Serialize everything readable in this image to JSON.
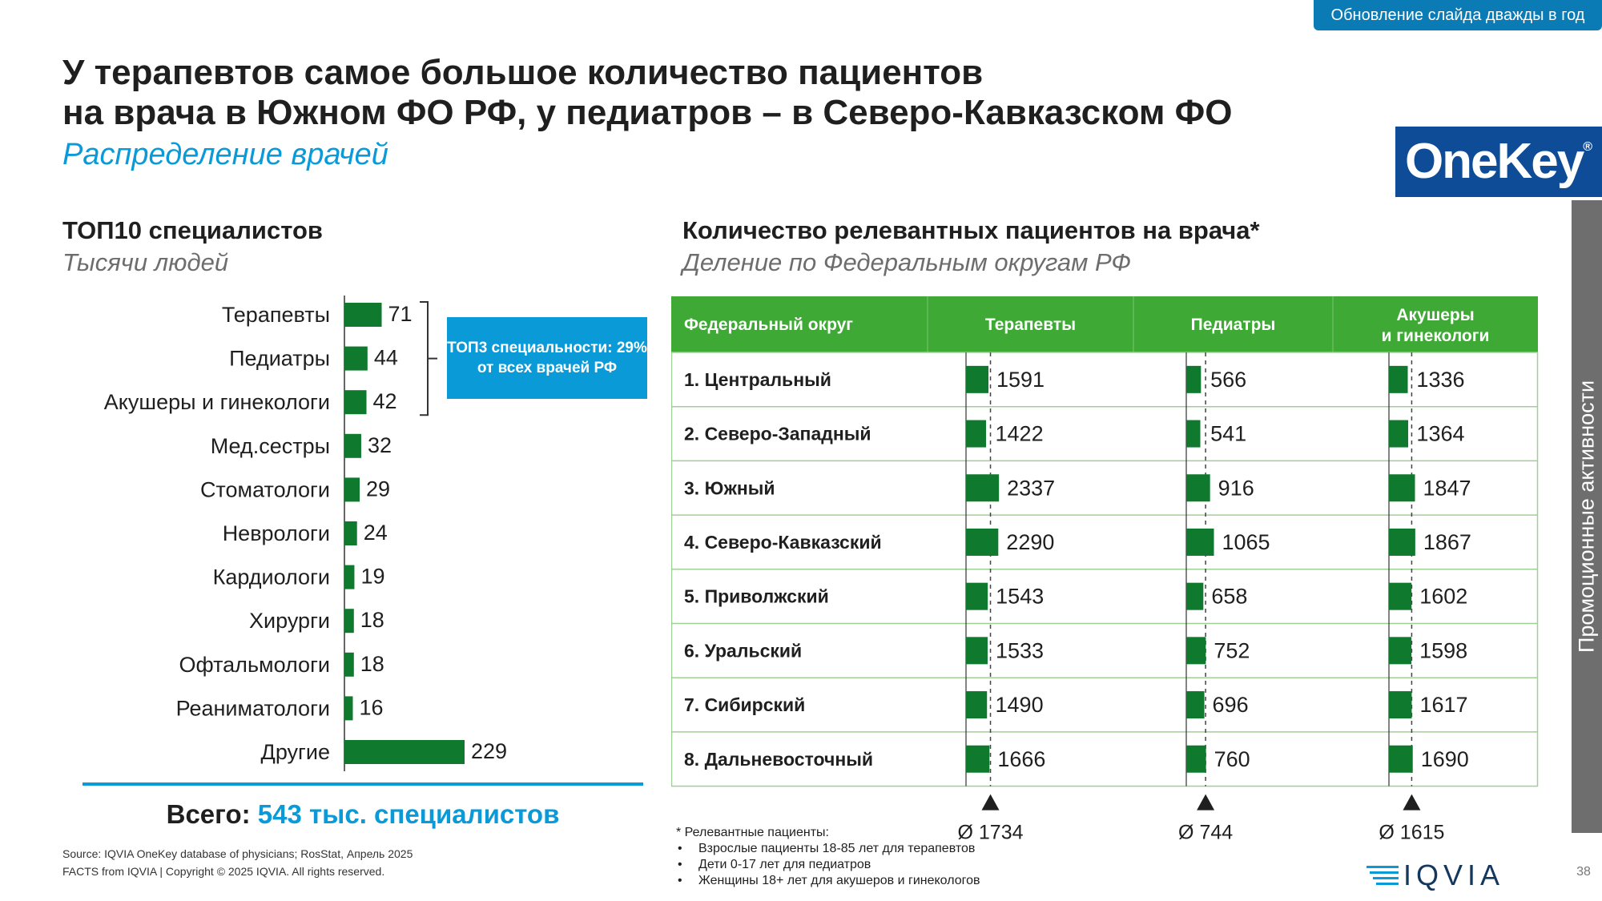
{
  "badge": "Обновление слайда дважды в год",
  "title_line1": "У терапевтов самое большое количество пациентов",
  "title_line2": "на врача в Южном ФО РФ, у педиатров – в Северо-Кавказском ФО",
  "subtitle": "Распределение врачей",
  "logo": "OneKey",
  "logo_reg": "®",
  "sidebar": "Промоционные активности",
  "left": {
    "title": "ТОП10 специалистов",
    "subtitle": "Тысячи людей",
    "top3_text": "ТОП3 специальности: 29% от всех врачей РФ",
    "total_label": "Всего:",
    "total_value": "543 тыс. специалистов"
  },
  "right": {
    "title": "Количество релевантных пациентов на врача*",
    "subtitle": "Деление по Федеральным округам РФ"
  },
  "chart_data": [
    {
      "type": "bar",
      "orientation": "horizontal",
      "title": "ТОП10 специалистов",
      "units": "Тысячи людей",
      "categories": [
        "Терапевты",
        "Педиатры",
        "Акушеры и гинекологи",
        "Мед.сестры",
        "Стоматологи",
        "Неврологи",
        "Кардиологи",
        "Хирурги",
        "Офтальмологи",
        "Реаниматологи",
        "Другие"
      ],
      "values": [
        71,
        44,
        42,
        32,
        29,
        24,
        19,
        18,
        18,
        16,
        229
      ]
    },
    {
      "type": "table",
      "title": "Количество релевантных пациентов на врача*",
      "columns": [
        "Федеральный округ",
        "Терапевты",
        "Педиатры",
        "Акушеры и гинекологи"
      ],
      "rows": [
        "1. Центральный",
        "2. Северо-Западный",
        "3. Южный",
        "4. Северо-Кавказский",
        "5. Приволжский",
        "6. Уральский",
        "7. Сибирский",
        "8. Дальневосточный"
      ],
      "series": [
        {
          "name": "Терапевты",
          "values": [
            1591,
            1422,
            2337,
            2290,
            1543,
            1533,
            1490,
            1666
          ],
          "average": 1734,
          "average_label": "Ø 1734"
        },
        {
          "name": "Педиатры",
          "values": [
            566,
            541,
            916,
            1065,
            658,
            752,
            696,
            760
          ],
          "average": 744,
          "average_label": "Ø 744"
        },
        {
          "name": "Акушеры и гинекологи",
          "values": [
            1336,
            1364,
            1847,
            1867,
            1602,
            1598,
            1617,
            1690
          ],
          "average": 1615,
          "average_label": "Ø 1615"
        }
      ]
    }
  ],
  "footnote": {
    "head": "* Релевантные пациенты:",
    "items": [
      "Взрослые пациенты 18-85 лет для терапевтов",
      "Дети 0-17 лет для педиатров",
      "Женщины 18+ лет для акушеров и гинекологов"
    ]
  },
  "source_line1": "Source: IQVIA OneKey database of physicians; RosStat, Апрель 2025",
  "source_line2": "FACTS from IQVIA | Copyright © 2025 IQVIA. All rights reserved.",
  "brand": "IQVIA",
  "page_number": "38",
  "colors": {
    "bar": "#0f7a2e",
    "header": "#3ea935",
    "accent": "#0a9ad8",
    "grid": "#9fcf95"
  }
}
